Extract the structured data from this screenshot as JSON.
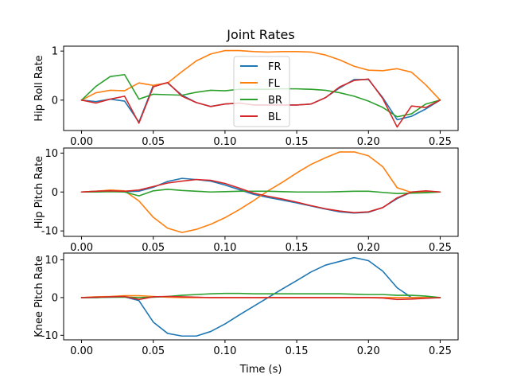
{
  "chart_data": {
    "type": "line",
    "title": "Joint Rates",
    "xlabel": "Time (s)",
    "x": [
      0.0,
      0.01,
      0.02,
      0.03,
      0.04,
      0.05,
      0.06,
      0.07,
      0.08,
      0.09,
      0.1,
      0.11,
      0.12,
      0.13,
      0.14,
      0.15,
      0.16,
      0.17,
      0.18,
      0.19,
      0.2,
      0.21,
      0.22,
      0.23,
      0.24,
      0.25
    ],
    "xlim": [
      -0.0125,
      0.2625
    ],
    "xticks": [
      "0.00",
      "0.05",
      "0.10",
      "0.15",
      "0.20",
      "0.25"
    ],
    "colors": {
      "FR": "#1f77b4",
      "FL": "#ff7f0e",
      "BR": "#2ca02c",
      "BL": "#d62728"
    },
    "legend": {
      "placement": "top-center",
      "entries": [
        "FR",
        "FL",
        "BR",
        "BL"
      ]
    },
    "panels": [
      {
        "ylabel": "Hip Roll Rate",
        "ylim": [
          -0.62,
          1.1
        ],
        "yticks": [
          0,
          1
        ],
        "series": [
          {
            "name": "FR",
            "values": [
              0.0,
              -0.03,
              0.02,
              -0.02,
              -0.45,
              0.3,
              0.35,
              0.1,
              -0.05,
              -0.13,
              -0.08,
              -0.06,
              -0.1,
              -0.1,
              -0.1,
              -0.1,
              -0.08,
              0.05,
              0.25,
              0.42,
              0.42,
              0.05,
              -0.4,
              -0.33,
              -0.18,
              0.0
            ]
          },
          {
            "name": "FL",
            "values": [
              0.0,
              0.15,
              0.2,
              0.19,
              0.35,
              0.3,
              0.35,
              0.58,
              0.8,
              0.94,
              1.01,
              1.01,
              0.99,
              0.98,
              0.99,
              0.99,
              0.98,
              0.92,
              0.82,
              0.69,
              0.61,
              0.6,
              0.64,
              0.57,
              0.31,
              0.0
            ]
          },
          {
            "name": "BR",
            "values": [
              0.0,
              0.28,
              0.48,
              0.52,
              0.02,
              0.12,
              0.11,
              0.1,
              0.16,
              0.2,
              0.19,
              0.22,
              0.22,
              0.22,
              0.23,
              0.23,
              0.22,
              0.2,
              0.15,
              0.08,
              -0.02,
              -0.15,
              -0.34,
              -0.28,
              -0.08,
              0.0
            ]
          },
          {
            "name": "BL",
            "values": [
              0.0,
              -0.06,
              0.02,
              0.08,
              -0.47,
              0.27,
              0.36,
              0.08,
              -0.05,
              -0.13,
              -0.08,
              -0.06,
              -0.1,
              -0.1,
              -0.1,
              -0.1,
              -0.08,
              0.05,
              0.27,
              0.4,
              0.43,
              0.03,
              -0.55,
              -0.12,
              -0.15,
              0.0
            ]
          }
        ]
      },
      {
        "ylabel": "Hip Pitch Rate",
        "ylim": [
          -11.4,
          11.3
        ],
        "yticks": [
          -10,
          0,
          10
        ],
        "series": [
          {
            "name": "FR",
            "values": [
              0.0,
              0.2,
              0.3,
              0.1,
              0.2,
              1.2,
              2.7,
              3.5,
              3.2,
              2.8,
              1.8,
              0.6,
              -0.6,
              -1.4,
              -2.1,
              -2.8,
              -3.6,
              -4.4,
              -5.1,
              -5.4,
              -5.2,
              -4.0,
              -1.7,
              0.0,
              0.1,
              0.0
            ]
          },
          {
            "name": "FL",
            "values": [
              0.0,
              0.2,
              0.5,
              0.3,
              -2.3,
              -6.5,
              -9.3,
              -10.4,
              -9.6,
              -8.3,
              -6.6,
              -4.5,
              -2.2,
              0.3,
              2.5,
              4.9,
              7.1,
              8.8,
              10.3,
              10.3,
              9.3,
              6.5,
              1.1,
              -0.1,
              0.2,
              0.0
            ]
          },
          {
            "name": "BR",
            "values": [
              0.0,
              0.0,
              0.1,
              0.0,
              -1.0,
              0.3,
              0.7,
              0.4,
              0.2,
              0.0,
              0.1,
              0.2,
              0.2,
              0.2,
              0.1,
              0.0,
              0.0,
              0.0,
              0.1,
              0.2,
              0.2,
              -0.1,
              -0.4,
              -0.3,
              -0.2,
              0.0
            ]
          },
          {
            "name": "BL",
            "values": [
              0.0,
              0.2,
              0.3,
              0.2,
              0.5,
              1.4,
              2.3,
              2.8,
              3.2,
              3.0,
              2.2,
              1.0,
              -0.3,
              -1.1,
              -1.8,
              -2.6,
              -3.5,
              -4.3,
              -4.9,
              -5.3,
              -5.1,
              -4.0,
              -1.5,
              0.0,
              0.3,
              0.0
            ]
          }
        ]
      },
      {
        "ylabel": "Knee Pitch Rate",
        "ylim": [
          -11.2,
          11.8
        ],
        "yticks": [
          -10,
          0,
          10
        ],
        "series": [
          {
            "name": "FR",
            "values": [
              0.0,
              0.0,
              0.1,
              0.2,
              -0.8,
              -6.5,
              -9.5,
              -10.2,
              -10.2,
              -9.0,
              -7.0,
              -4.6,
              -2.3,
              0.0,
              2.3,
              4.5,
              6.8,
              8.6,
              9.6,
              10.6,
              9.8,
              7.0,
              2.6,
              0.0,
              0.0,
              0.0
            ]
          },
          {
            "name": "FL",
            "values": [
              0.0,
              0.2,
              0.3,
              0.5,
              0.5,
              0.3,
              0.1,
              0.0,
              0.0,
              0.0,
              0.0,
              0.0,
              0.0,
              0.0,
              0.0,
              0.0,
              0.0,
              0.0,
              0.0,
              0.0,
              0.0,
              0.0,
              0.0,
              0.0,
              0.0,
              0.0
            ]
          },
          {
            "name": "BR",
            "values": [
              0.0,
              0.0,
              0.1,
              0.1,
              0.0,
              0.1,
              0.3,
              0.6,
              0.8,
              1.0,
              1.1,
              1.1,
              1.0,
              1.0,
              1.0,
              1.0,
              1.0,
              1.0,
              1.0,
              0.9,
              0.8,
              0.8,
              0.6,
              0.6,
              0.4,
              0.0
            ]
          },
          {
            "name": "BL",
            "values": [
              0.0,
              0.1,
              0.2,
              0.3,
              -0.5,
              0.2,
              0.3,
              0.2,
              0.1,
              0.0,
              0.0,
              0.0,
              0.0,
              0.0,
              0.0,
              0.0,
              0.0,
              0.0,
              0.0,
              0.0,
              0.0,
              -0.1,
              -0.5,
              -0.4,
              -0.2,
              0.0
            ]
          }
        ]
      }
    ]
  }
}
